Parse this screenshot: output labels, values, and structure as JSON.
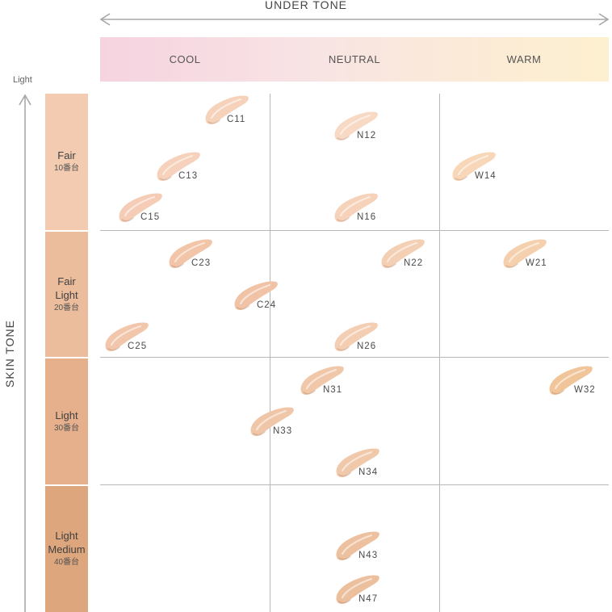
{
  "header": {
    "under_tone_title": "UNDER TONE"
  },
  "tones": {
    "cool": "COOL",
    "neutral": "NEUTRAL",
    "warm": "WARM"
  },
  "side": {
    "light_label": "Light",
    "skin_tone_title": "SKIN TONE"
  },
  "rows": [
    {
      "name": "Fair",
      "series": "10番台",
      "color": "#f2cbb1"
    },
    {
      "name": "Fair Light",
      "series": "20番台",
      "color": "#ebbd9d"
    },
    {
      "name": "Light",
      "series": "30番台",
      "color": "#e6b08d"
    },
    {
      "name": "Light Medium",
      "series": "40番台",
      "color": "#dea67c"
    }
  ],
  "shades": [
    {
      "code": "C11",
      "undertone": "cool",
      "skin_tone": "Fair",
      "color": "#f6d2bb"
    },
    {
      "code": "C13",
      "undertone": "cool",
      "skin_tone": "Fair",
      "color": "#f6d1bb"
    },
    {
      "code": "C15",
      "undertone": "cool",
      "skin_tone": "Fair",
      "color": "#f5ccb5"
    },
    {
      "code": "N12",
      "undertone": "neutral",
      "skin_tone": "Fair",
      "color": "#f7d9c4"
    },
    {
      "code": "N16",
      "undertone": "neutral",
      "skin_tone": "Fair",
      "color": "#f5d2b9"
    },
    {
      "code": "W14",
      "undertone": "warm",
      "skin_tone": "Fair",
      "color": "#f7d7b8"
    },
    {
      "code": "C23",
      "undertone": "cool",
      "skin_tone": "Fair Light",
      "color": "#f2c4a8"
    },
    {
      "code": "C24",
      "undertone": "cool",
      "skin_tone": "Fair Light",
      "color": "#f1c3a6"
    },
    {
      "code": "C25",
      "undertone": "cool",
      "skin_tone": "Fair Light",
      "color": "#f2c6ab"
    },
    {
      "code": "N22",
      "undertone": "neutral",
      "skin_tone": "Fair Light",
      "color": "#f3cfb3"
    },
    {
      "code": "N26",
      "undertone": "neutral",
      "skin_tone": "Fair Light",
      "color": "#f3ceb2"
    },
    {
      "code": "W21",
      "undertone": "warm",
      "skin_tone": "Fair Light",
      "color": "#f5d0ae"
    },
    {
      "code": "N31",
      "undertone": "neutral",
      "skin_tone": "Light",
      "color": "#f1c7a9"
    },
    {
      "code": "N33",
      "undertone": "neutral",
      "skin_tone": "Light",
      "color": "#f0c6a8"
    },
    {
      "code": "N34",
      "undertone": "neutral",
      "skin_tone": "Light",
      "color": "#f0c8aa"
    },
    {
      "code": "W32",
      "undertone": "warm",
      "skin_tone": "Light",
      "color": "#f1c59a"
    },
    {
      "code": "N43",
      "undertone": "neutral",
      "skin_tone": "Light Medium",
      "color": "#edc19f"
    },
    {
      "code": "N47",
      "undertone": "neutral",
      "skin_tone": "Light Medium",
      "color": "#ecbf9d"
    }
  ]
}
